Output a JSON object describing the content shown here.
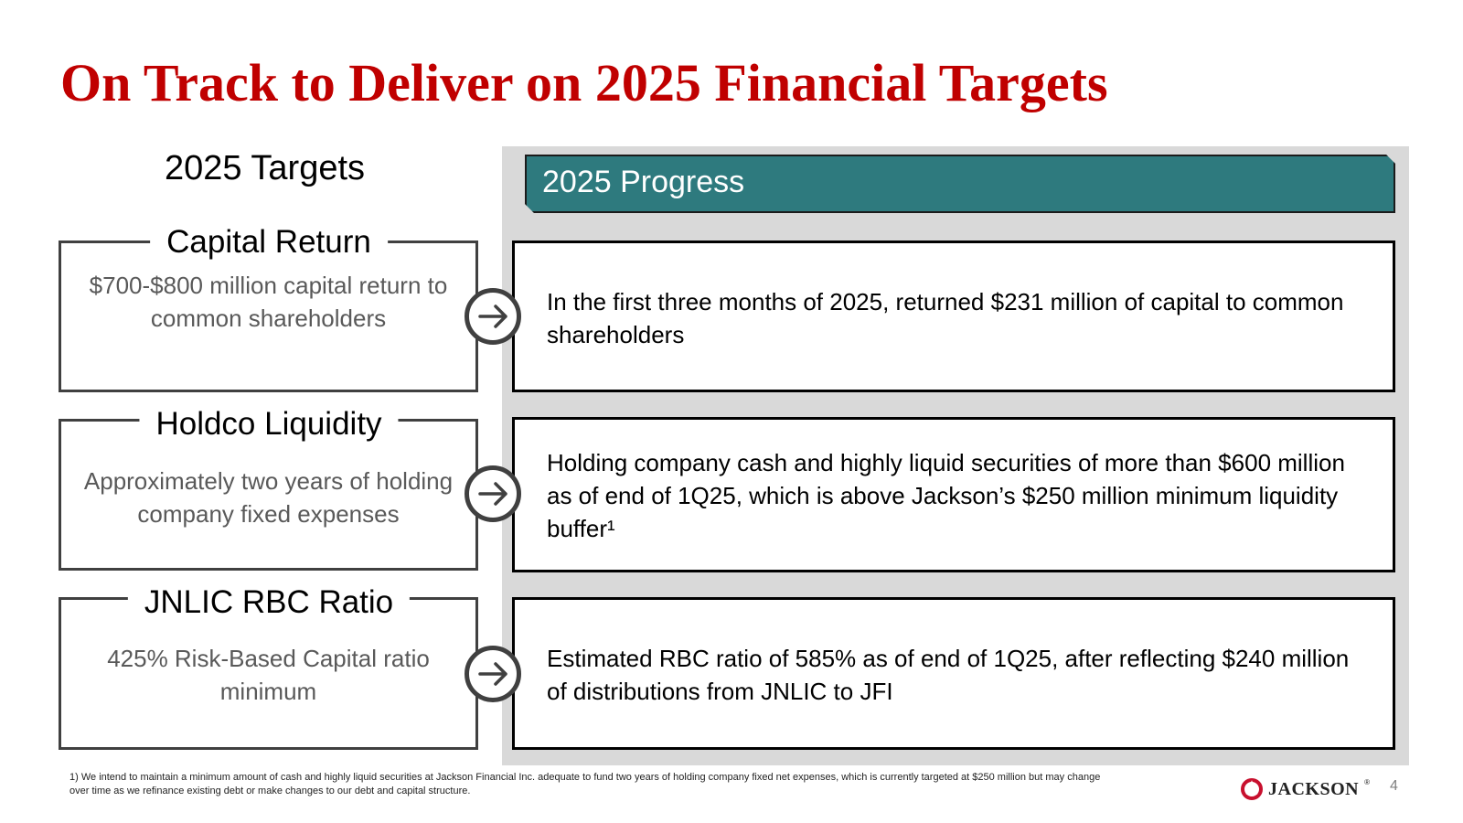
{
  "title": "On Track to Deliver on 2025 Financial Targets",
  "targets_heading": "2025 Targets",
  "progress_heading": "2025 Progress",
  "rows": [
    {
      "target_label": "Capital Return",
      "target_desc": "$700-$800 million capital return to common shareholders",
      "progress_text": "In the first three months of 2025, returned $231 million of capital to common shareholders"
    },
    {
      "target_label": "Holdco Liquidity",
      "target_desc": "Approximately two years of holding company fixed expenses",
      "progress_text": "Holding company cash and highly liquid securities of more than $600 million as of end of 1Q25, which is above Jackson’s $250 million minimum liquidity buffer¹"
    },
    {
      "target_label": "JNLIC RBC Ratio",
      "target_desc": "425% Risk-Based Capital ratio minimum",
      "progress_text": "Estimated RBC ratio of 585% as of end of 1Q25, after reflecting $240 million of distributions from JNLIC to JFI"
    }
  ],
  "footnote": "1) We intend to maintain a minimum amount of cash and highly liquid securities at Jackson Financial Inc. adequate to fund two years of holding company fixed net expenses, which is currently targeted at $250 million but may change over time as we refinance existing debt or make changes to our debt and capital structure.",
  "logo_text": "JACKSON",
  "logo_mark": "®",
  "page_number": "4",
  "colors": {
    "title": "#c00000",
    "banner": "#2e7a7e",
    "panel": "#d9d9d9",
    "logo_mark": "#c8102e"
  }
}
